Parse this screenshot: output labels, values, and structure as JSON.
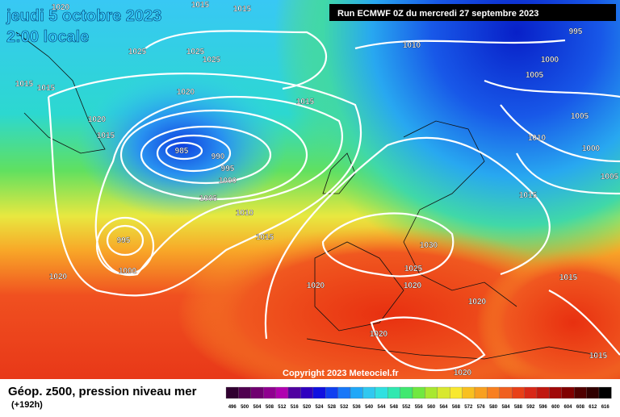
{
  "header": {
    "date": "jeudi 5 octobre 2023",
    "time": "2:00 locale",
    "run": "Run ECMWF 0Z du mercredi 27 septembre 2023"
  },
  "isobar_labels": [
    1020,
    1015,
    1015,
    1025,
    1025,
    1025,
    1015,
    1015,
    1020,
    1015,
    1020,
    1015,
    985,
    990,
    995,
    1000,
    1005,
    1010,
    1015,
    995,
    1000,
    1020,
    1010,
    995,
    1000,
    1005,
    1005,
    1010,
    1000,
    1005,
    1015,
    1030,
    1025,
    1020,
    1020,
    1015,
    1020,
    1020,
    1020,
    1015
  ],
  "copyright": "Copyright 2023 Meteociel.fr",
  "legend": {
    "title": "Géop. z500, pression niveau mer",
    "lead": "(+192h)",
    "labels": [
      496,
      500,
      504,
      508,
      512,
      516,
      520,
      524,
      528,
      532,
      536,
      540,
      544,
      548,
      552,
      556,
      560,
      564,
      568,
      572,
      576,
      580,
      584,
      588,
      592,
      596,
      600,
      604,
      608,
      612,
      616
    ]
  }
}
